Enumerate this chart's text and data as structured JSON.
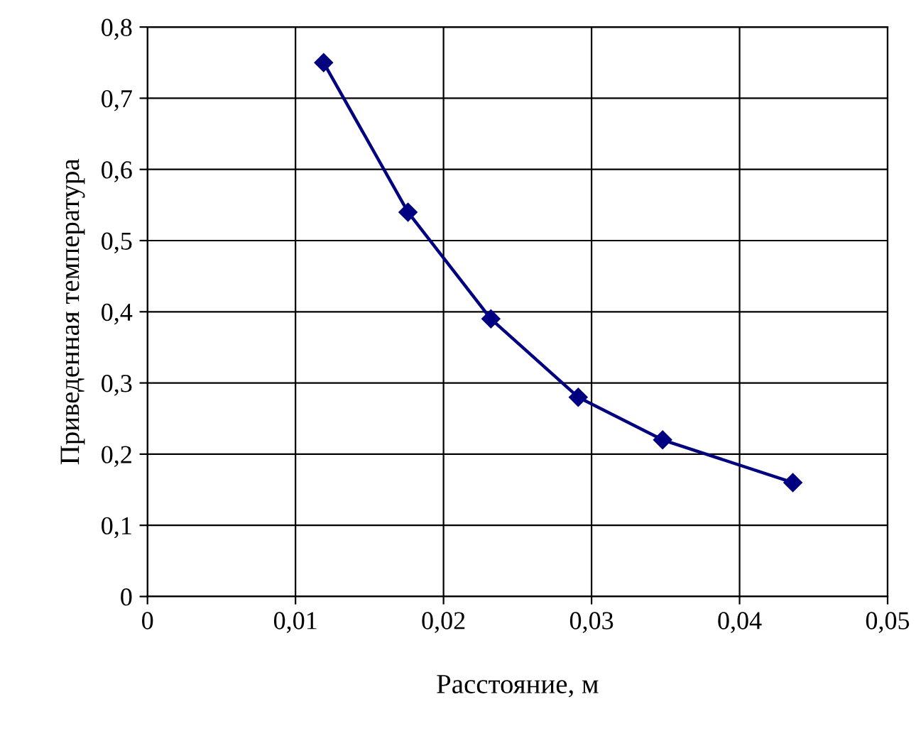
{
  "chart_data": {
    "type": "line",
    "xlabel": "Расстояние, м",
    "ylabel": "Приведенная температура",
    "x": [
      0.0119,
      0.0176,
      0.0232,
      0.0291,
      0.0348,
      0.0436
    ],
    "series": [
      {
        "color": "#000080",
        "values": [
          0.75,
          0.54,
          0.39,
          0.28,
          0.22,
          0.16
        ]
      }
    ],
    "xlim": [
      0,
      0.05
    ],
    "ylim": [
      0,
      0.8
    ],
    "xticks": [
      0,
      {
        "value": 0.01,
        "label": "0,01"
      },
      {
        "value": 0.02,
        "label": "0,02"
      },
      {
        "value": 0.03,
        "label": "0,03"
      },
      {
        "value": 0.04,
        "label": "0,04"
      },
      {
        "value": 0.05,
        "label": "0,05"
      }
    ],
    "yticks": [
      0,
      {
        "value": 0.1,
        "label": "0,1"
      },
      {
        "value": 0.2,
        "label": "0,2"
      },
      {
        "value": 0.3,
        "label": "0,3"
      },
      {
        "value": 0.4,
        "label": "0,4"
      },
      {
        "value": 0.5,
        "label": "0,5"
      },
      {
        "value": 0.6,
        "label": "0,6"
      },
      {
        "value": 0.7,
        "label": "0,7"
      },
      {
        "value": 0.8,
        "label": "0,8"
      }
    ],
    "grid": true,
    "marker": "diamond",
    "line_style": "solid",
    "legend": false
  }
}
